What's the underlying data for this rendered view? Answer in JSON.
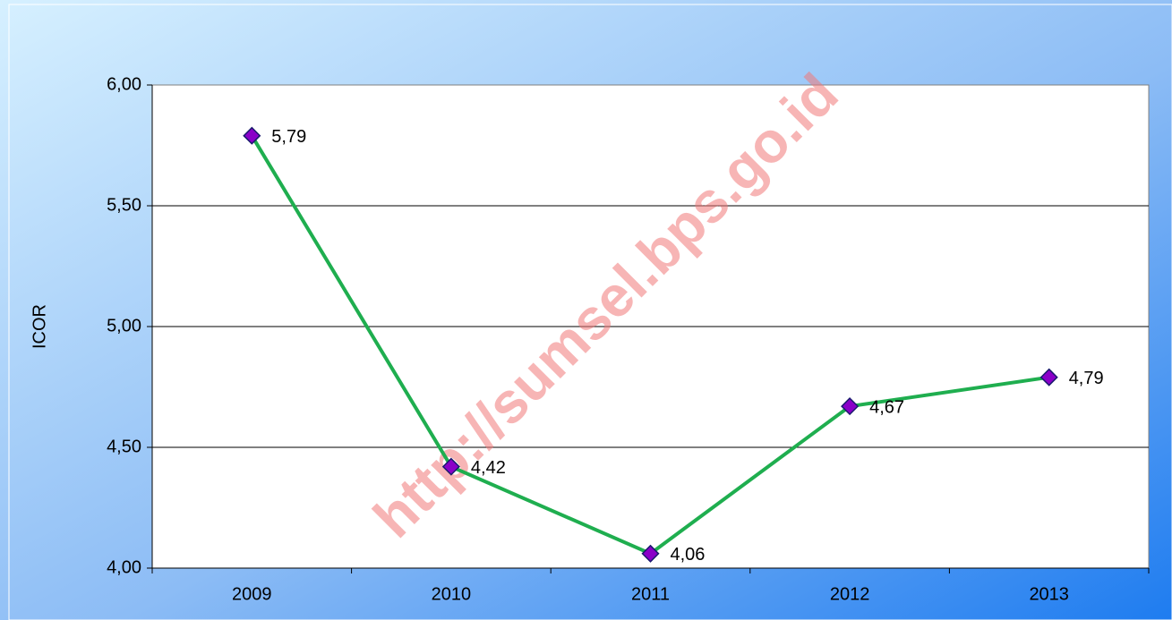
{
  "chart_data": {
    "type": "line",
    "y_label": "ICOR",
    "watermark": "http://sumsel.bps.go.id",
    "categories": [
      "2009",
      "2010",
      "2011",
      "2012",
      "2013"
    ],
    "series": [
      {
        "name": "ICOR",
        "color": "#1fae4f",
        "marker_color": "#8a00c8",
        "values": [
          5.79,
          4.42,
          4.06,
          4.67,
          4.79
        ],
        "value_labels": [
          "5,79",
          "4,42",
          "4,06",
          "4,67",
          "4,79"
        ]
      }
    ],
    "ylim": [
      4,
      6
    ],
    "yticks": [
      {
        "value": 4,
        "label": "4,00"
      },
      {
        "value": 4.5,
        "label": "4,50"
      },
      {
        "value": 5,
        "label": "5,00"
      },
      {
        "value": 5.5,
        "label": "5,50"
      },
      {
        "value": 6,
        "label": "6,00"
      }
    ],
    "grid": true,
    "legend": false
  }
}
